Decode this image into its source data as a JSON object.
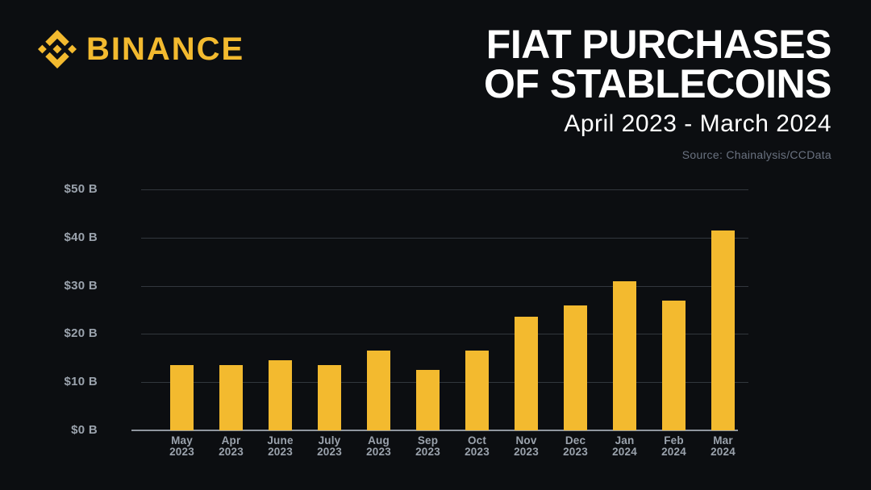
{
  "brand": {
    "wordmark": "BINANCE"
  },
  "header": {
    "title_line1": "FIAT PURCHASES",
    "title_line2": "OF STABLECOINS",
    "subtitle": "April 2023 - March 2024",
    "source": "Source: Chainalysis/CCData"
  },
  "colors": {
    "background": "#0C0E11",
    "brand_yellow": "#F3BA2F",
    "title_text": "#FFFFFF",
    "label_text": "#9BA3AD",
    "source_text": "#6A7280",
    "gridline": "#32373D",
    "axis_line": "#8F969E"
  },
  "chart_data": {
    "type": "bar",
    "title": "FIAT PURCHASES OF STABLECOINS",
    "subtitle": "April 2023 - March 2024",
    "source": "Source: Chainalysis/CCData",
    "unit": "USD billions",
    "xlabel": "",
    "ylabel": "",
    "ylim": [
      0,
      50
    ],
    "grid": true,
    "legend": false,
    "bar_color": "#F3BA2F",
    "y_ticks": [
      {
        "value": 0,
        "label": "$0 B"
      },
      {
        "value": 10,
        "label": "$10 B"
      },
      {
        "value": 20,
        "label": "$20 B"
      },
      {
        "value": 30,
        "label": "$30 B"
      },
      {
        "value": 40,
        "label": "$40 B"
      },
      {
        "value": 50,
        "label": "$50 B"
      }
    ],
    "categories": [
      {
        "month": "May",
        "year": "2023"
      },
      {
        "month": "Apr",
        "year": "2023"
      },
      {
        "month": "June",
        "year": "2023"
      },
      {
        "month": "July",
        "year": "2023"
      },
      {
        "month": "Aug",
        "year": "2023"
      },
      {
        "month": "Sep",
        "year": "2023"
      },
      {
        "month": "Oct",
        "year": "2023"
      },
      {
        "month": "Nov",
        "year": "2023"
      },
      {
        "month": "Dec",
        "year": "2023"
      },
      {
        "month": "Jan",
        "year": "2024"
      },
      {
        "month": "Feb",
        "year": "2024"
      },
      {
        "month": "Mar",
        "year": "2024"
      }
    ],
    "values": [
      13.5,
      13.5,
      14.5,
      13.5,
      16.5,
      12.5,
      16.5,
      23.5,
      26,
      31,
      27,
      41.5
    ]
  }
}
